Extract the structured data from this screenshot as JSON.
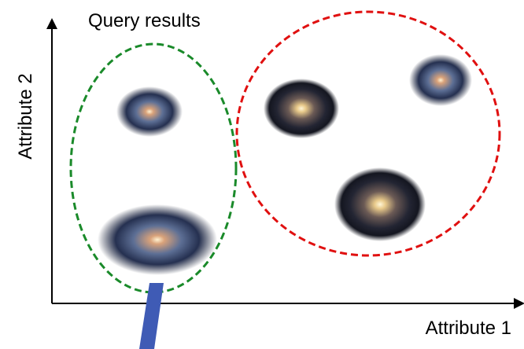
{
  "title": "Query results",
  "axes": {
    "x_label": "Attribute 1",
    "y_label": "Attribute 2"
  }
}
